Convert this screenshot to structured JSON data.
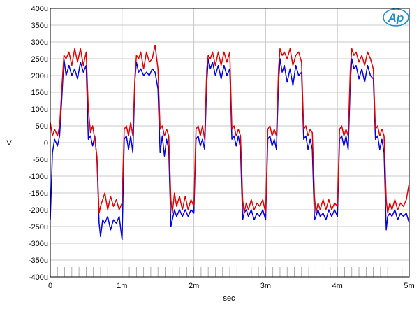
{
  "chart_data": {
    "type": "line",
    "xlabel": "sec",
    "ylabel": "V",
    "xlim": [
      0,
      0.005
    ],
    "ylim": [
      -0.0004,
      0.0004
    ],
    "grid": true,
    "x_ticks": [
      {
        "value": 0,
        "label": "0"
      },
      {
        "value": 0.001,
        "label": "1m"
      },
      {
        "value": 0.002,
        "label": "2m"
      },
      {
        "value": 0.003,
        "label": "3m"
      },
      {
        "value": 0.004,
        "label": "4m"
      },
      {
        "value": 0.005,
        "label": "5m"
      }
    ],
    "y_ticks": [
      {
        "value": 0.0004,
        "label": "400u"
      },
      {
        "value": 0.00035,
        "label": "350u"
      },
      {
        "value": 0.0003,
        "label": "300u"
      },
      {
        "value": 0.00025,
        "label": "250u"
      },
      {
        "value": 0.0002,
        "label": "200u"
      },
      {
        "value": 0.00015,
        "label": "150u"
      },
      {
        "value": 0.0001,
        "label": "100u"
      },
      {
        "value": 5e-05,
        "label": "50u"
      },
      {
        "value": 0,
        "label": "0"
      },
      {
        "value": -5e-05,
        "label": "-50u"
      },
      {
        "value": -0.0001,
        "label": "-100u"
      },
      {
        "value": -0.00015,
        "label": "-150u"
      },
      {
        "value": -0.0002,
        "label": "-200u"
      },
      {
        "value": -0.00025,
        "label": "-250u"
      },
      {
        "value": -0.0003,
        "label": "-300u"
      },
      {
        "value": -0.00035,
        "label": "-350u"
      },
      {
        "value": -0.0004,
        "label": "-400u"
      }
    ],
    "series": [
      {
        "color": "#e00000",
        "x": [
          0,
          3e-05,
          6e-05,
          0.0001,
          0.00013,
          0.00016,
          0.00019,
          0.00022,
          0.00026,
          0.0003,
          0.00034,
          0.00038,
          0.00042,
          0.00046,
          0.0005,
          0.00053,
          0.00056,
          0.00059,
          0.00062,
          0.00065,
          0.00068,
          0.0007,
          0.00073,
          0.00076,
          0.0008,
          0.00084,
          0.00088,
          0.00092,
          0.00096,
          0.001,
          0.00103,
          0.00106,
          0.00109,
          0.00112,
          0.00115,
          0.00118,
          0.0012,
          0.00123,
          0.00126,
          0.0013,
          0.00134,
          0.00138,
          0.00142,
          0.00146,
          0.0015,
          0.00153,
          0.00156,
          0.00159,
          0.00162,
          0.00165,
          0.00168,
          0.0017,
          0.00173,
          0.00176,
          0.0018,
          0.00184,
          0.00188,
          0.00192,
          0.00196,
          0.002,
          0.00203,
          0.00206,
          0.00209,
          0.00212,
          0.00215,
          0.00218,
          0.0022,
          0.00223,
          0.00226,
          0.0023,
          0.00234,
          0.00238,
          0.00242,
          0.00246,
          0.0025,
          0.00253,
          0.00256,
          0.00259,
          0.00262,
          0.00265,
          0.00268,
          0.0027,
          0.00273,
          0.00276,
          0.0028,
          0.00284,
          0.00288,
          0.00292,
          0.00296,
          0.003,
          0.00303,
          0.00306,
          0.00309,
          0.00312,
          0.00315,
          0.00318,
          0.0032,
          0.00323,
          0.00326,
          0.0033,
          0.00334,
          0.00338,
          0.00342,
          0.00346,
          0.0035,
          0.00353,
          0.00356,
          0.00359,
          0.00362,
          0.00365,
          0.00368,
          0.0037,
          0.00373,
          0.00376,
          0.0038,
          0.00384,
          0.00388,
          0.00392,
          0.00396,
          0.004,
          0.00403,
          0.00406,
          0.00409,
          0.00412,
          0.00415,
          0.00418,
          0.0042,
          0.00423,
          0.00426,
          0.0043,
          0.00434,
          0.00438,
          0.00442,
          0.00446,
          0.0045,
          0.00453,
          0.00456,
          0.00459,
          0.00462,
          0.00465,
          0.00468,
          0.0047,
          0.00473,
          0.00476,
          0.0048,
          0.00484,
          0.00488,
          0.00492,
          0.00496,
          0.005
        ],
        "y": [
          6e-05,
          2e-05,
          4e-05,
          2e-05,
          5e-05,
          0.00016,
          0.00026,
          0.00025,
          0.00027,
          0.00023,
          0.00028,
          0.00024,
          0.00028,
          0.00023,
          0.00027,
          0.0001,
          3e-05,
          5e-05,
          1e-05,
          -4e-05,
          -0.00021,
          -0.00019,
          -0.00017,
          -0.00015,
          -0.0002,
          -0.00016,
          -0.00019,
          -0.00017,
          -0.0002,
          -0.00018,
          4e-05,
          5e-05,
          2e-05,
          6e-05,
          2e-05,
          0.0002,
          0.00026,
          0.00025,
          0.00027,
          0.00022,
          0.00027,
          0.00024,
          0.00025,
          0.00029,
          0.00022,
          4e-05,
          5e-05,
          2e-05,
          4e-05,
          2e-05,
          -0.00017,
          -0.00021,
          -0.00015,
          -0.00019,
          -0.00016,
          -0.0002,
          -0.00016,
          -0.0002,
          -0.00017,
          -0.00019,
          4e-05,
          5e-05,
          2e-05,
          5e-05,
          1e-05,
          0.00022,
          0.00026,
          0.00025,
          0.00027,
          0.00023,
          0.00027,
          0.00023,
          0.00027,
          0.00024,
          0.00027,
          4e-05,
          5e-05,
          2e-05,
          4e-05,
          2e-05,
          -0.00017,
          -0.00021,
          -0.00018,
          -0.0002,
          -0.00017,
          -0.0002,
          -0.00018,
          -0.00019,
          -0.00017,
          -0.00021,
          4e-05,
          5e-05,
          2e-05,
          4e-05,
          2e-05,
          0.00022,
          0.00028,
          0.00026,
          0.00027,
          0.00025,
          0.00028,
          0.00023,
          0.00026,
          0.00027,
          0.00024,
          4e-05,
          5e-05,
          2e-05,
          4e-05,
          3e-05,
          -0.00016,
          -0.00021,
          -0.00018,
          -0.0002,
          -0.00017,
          -0.0002,
          -0.00017,
          -0.0002,
          -0.00018,
          -0.00019,
          4e-05,
          5e-05,
          2e-05,
          4e-05,
          2e-05,
          0.00022,
          0.00028,
          0.00026,
          0.00027,
          0.00024,
          0.00026,
          0.00023,
          0.00027,
          0.00025,
          0.00022,
          4e-05,
          5e-05,
          2e-05,
          4e-05,
          2e-05,
          -0.00017,
          -0.00021,
          -0.00018,
          -0.0002,
          -0.00017,
          -0.0002,
          -0.00018,
          -0.00019,
          -0.00017,
          -0.00012
        ]
      },
      {
        "color": "#0000e0",
        "x": [
          0,
          3e-05,
          6e-05,
          0.0001,
          0.00013,
          0.00016,
          0.00019,
          0.00022,
          0.00026,
          0.0003,
          0.00034,
          0.00038,
          0.00042,
          0.00046,
          0.0005,
          0.00053,
          0.00056,
          0.00059,
          0.00062,
          0.00065,
          0.00068,
          0.0007,
          0.00073,
          0.00076,
          0.0008,
          0.00084,
          0.00088,
          0.00092,
          0.00096,
          0.001,
          0.00103,
          0.00106,
          0.00109,
          0.00112,
          0.00115,
          0.00118,
          0.0012,
          0.00123,
          0.00126,
          0.0013,
          0.00134,
          0.00138,
          0.00142,
          0.00146,
          0.0015,
          0.00153,
          0.00156,
          0.00159,
          0.00162,
          0.00165,
          0.00168,
          0.0017,
          0.00173,
          0.00176,
          0.0018,
          0.00184,
          0.00188,
          0.00192,
          0.00196,
          0.002,
          0.00203,
          0.00206,
          0.00209,
          0.00212,
          0.00215,
          0.00218,
          0.0022,
          0.00223,
          0.00226,
          0.0023,
          0.00234,
          0.00238,
          0.00242,
          0.00246,
          0.0025,
          0.00253,
          0.00256,
          0.00259,
          0.00262,
          0.00265,
          0.00268,
          0.0027,
          0.00273,
          0.00276,
          0.0028,
          0.00284,
          0.00288,
          0.00292,
          0.00296,
          0.003,
          0.00303,
          0.00306,
          0.00309,
          0.00312,
          0.00315,
          0.00318,
          0.0032,
          0.00323,
          0.00326,
          0.0033,
          0.00334,
          0.00338,
          0.00342,
          0.00346,
          0.0035,
          0.00353,
          0.00356,
          0.00359,
          0.00362,
          0.00365,
          0.00368,
          0.0037,
          0.00373,
          0.00376,
          0.0038,
          0.00384,
          0.00388,
          0.00392,
          0.00396,
          0.004,
          0.00403,
          0.00406,
          0.00409,
          0.00412,
          0.00415,
          0.00418,
          0.0042,
          0.00423,
          0.00426,
          0.0043,
          0.00434,
          0.00438,
          0.00442,
          0.00446,
          0.0045,
          0.00453,
          0.00456,
          0.00459,
          0.00462,
          0.00465,
          0.00468,
          0.0047,
          0.00473,
          0.00476,
          0.0048,
          0.00484,
          0.00488,
          0.00492,
          0.00496,
          0.005
        ],
        "y": [
          -0.00023,
          -3e-05,
          1e-05,
          -1e-05,
          2e-05,
          0.00013,
          0.00025,
          0.0002,
          0.00023,
          0.0002,
          0.00022,
          0.00019,
          0.00024,
          0.00021,
          0.00023,
          1e-05,
          2e-05,
          -1e-05,
          2e-05,
          -5e-05,
          -0.00024,
          -0.00028,
          -0.00023,
          -0.00024,
          -0.00022,
          -0.00026,
          -0.00023,
          -0.00024,
          -0.00022,
          -0.00029,
          1e-05,
          2e-05,
          -2e-05,
          2e-05,
          -3e-05,
          0.00019,
          0.00024,
          0.00021,
          0.00022,
          0.0002,
          0.00021,
          0.0002,
          0.00022,
          0.00021,
          0.00016,
          -3e-05,
          2e-05,
          -4e-05,
          1e-05,
          -2e-05,
          -0.00025,
          -0.00023,
          -0.0002,
          -0.00022,
          -0.0002,
          -0.00022,
          -0.0002,
          -0.00022,
          -0.0002,
          -0.00021,
          1e-05,
          2e-05,
          -1e-05,
          1e-05,
          -2e-05,
          0.00018,
          0.00025,
          0.00022,
          0.00024,
          0.0002,
          0.00023,
          0.00019,
          0.00023,
          0.0002,
          0.00022,
          1e-05,
          2e-05,
          -1e-05,
          2e-05,
          -2e-05,
          -0.00023,
          -0.00021,
          -0.0002,
          -0.00022,
          -0.0002,
          -0.00023,
          -0.00021,
          -0.00022,
          -0.0002,
          -0.00023,
          1e-05,
          2e-05,
          -1e-05,
          1e-05,
          -2e-05,
          0.00018,
          0.00025,
          0.00021,
          0.00023,
          0.00018,
          0.00022,
          0.00017,
          0.00023,
          0.0002,
          0.00021,
          1e-05,
          2e-05,
          -2e-05,
          1e-05,
          -2e-05,
          -0.00023,
          -0.00022,
          -0.0002,
          -0.00022,
          -0.00021,
          -0.00023,
          -0.0002,
          -0.00022,
          -0.0002,
          -0.00022,
          1e-05,
          2e-05,
          -1e-05,
          2e-05,
          -2e-05,
          0.00018,
          0.00025,
          0.00022,
          0.00023,
          0.00019,
          0.00022,
          0.00018,
          0.00023,
          0.0002,
          0.00019,
          1e-05,
          2e-05,
          -2e-05,
          1e-05,
          -3e-05,
          -0.00026,
          -0.00022,
          -0.00021,
          -0.00022,
          -0.0002,
          -0.00023,
          -0.00021,
          -0.00022,
          -0.00021,
          -0.00024
        ]
      }
    ]
  },
  "logo": {
    "text": "Ap",
    "color": "#1f8fc8"
  },
  "colors": {
    "grid": "#c8c8c8",
    "axis": "#000000"
  }
}
